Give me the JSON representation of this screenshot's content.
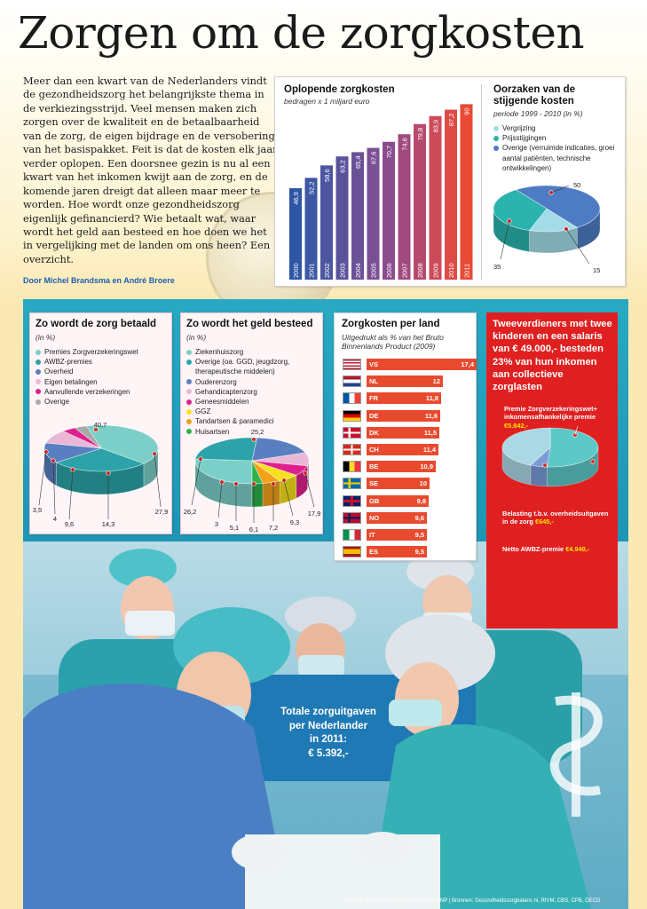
{
  "title": "Zorgen om de zorgkosten",
  "intro": "Meer dan een kwart van de Nederlanders vindt de gezondheidszorg het belangrijkste thema in de verkiezingsstrijd. Veel mensen maken zich zorgen over de kwaliteit en de betaalbaarheid van de zorg, de eigen bijdrage en de versobering van het basispakket. Feit is dat de kosten elk jaar verder oplopen. Een doorsnee gezin is nu al een kwart van het inkomen kwijt aan de zorg, en de komende jaren dreigt dat alleen maar meer te worden. Hoe wordt onze gezondheidszorg eigenlijk gefinancierd? Wie betaalt wat, waar wordt het geld aan besteed en hoe doen we het in vergelijking met de landen om ons heen? Een overzicht.",
  "byline": "Door Michel Brandsma en André Broere",
  "total_box": {
    "line1": "Totale zorguitgaven",
    "line2": "per Nederlander",
    "line3": "in 2011:",
    "line4": "€ 5.392,-"
  },
  "credits": "© DyNN 140912 | André Broere | Foto: ANP | Bronnen: Gezondheidszorgbalans nl, RIVM, CBS, CPB, OECD",
  "red_box": {
    "title": "Tweeverdieners met twee kinderen en een salaris van € 49.000,- besteden 23% van hun inkomen aan collectieve zorglasten",
    "premie_label": "Premie Zorgverzekeringswet+ inkomensafhankelijke premie",
    "premie_value": "€5.842,-",
    "belasting_label": "Belasting t.b.v. overheidsuitgaven in de zorg",
    "belasting_value": "€645,-",
    "netto_label": "Netto AWBZ-premie",
    "netto_value": "€4.949,-"
  },
  "chart_data": [
    {
      "type": "bar",
      "title": "Oplopende zorgkosten",
      "subtitle": "bedragen x 1 miljard euro",
      "categories": [
        "2000",
        "2001",
        "2002",
        "2003",
        "2004",
        "2005",
        "2006",
        "2007",
        "2008",
        "2009",
        "2010",
        "2011"
      ],
      "values": [
        46.9,
        52.2,
        58.6,
        63.2,
        65.4,
        67.6,
        70.7,
        74.6,
        79.8,
        83.9,
        87.2,
        90
      ],
      "colors": [
        "#2f56a6",
        "#3c57a3",
        "#4b55a0",
        "#5a539c",
        "#6a5198",
        "#7a4f94",
        "#8b4c8e",
        "#a04a80",
        "#b8496e",
        "#cd4a59",
        "#dd4b46",
        "#e84a35"
      ]
    },
    {
      "type": "pie",
      "title": "Oorzaken van de stijgende kosten",
      "subtitle": "periode 1999 - 2010 (in %)",
      "labels": [
        "Vergrijzing",
        "Prijsstijgingen",
        "Overige (verruimde indicaties, groei aantal patiënten, technische ontwikkelingen)"
      ],
      "values": [
        15,
        35,
        50
      ],
      "colors": [
        "#a3dce8",
        "#2bb3ae",
        "#4e7cc4"
      ]
    },
    {
      "type": "pie",
      "title": "Zo wordt de zorg betaald",
      "subtitle": "(in %)",
      "labels": [
        "Premies Zorgverzekeringswet",
        "AWBZ-premies",
        "Overheid",
        "Eigen betalingen",
        "Aanvullende verzekeringen",
        "Overige"
      ],
      "values": [
        40.7,
        27.9,
        14.3,
        9.6,
        4,
        3.5
      ],
      "colors": [
        "#7ccfc9",
        "#2ba3a8",
        "#5a7fc0",
        "#e9b8d6",
        "#e0208e",
        "#a9a9a9"
      ]
    },
    {
      "type": "pie",
      "title": "Zo wordt het geld besteed",
      "subtitle": "(in %)",
      "labels": [
        "Ziekenhuiszorg",
        "Overige (oa. GGD, jeugdzorg, therapeutische middelen)",
        "Ouderenzorg",
        "Gehandicaptenzorg",
        "Geneesmiddelen",
        "GGZ",
        "Tandartsen & paramedici",
        "Huisartsen"
      ],
      "values": [
        26.2,
        25.2,
        17.9,
        9.3,
        7.2,
        6.1,
        5.1,
        3
      ],
      "colors": [
        "#7ccfc9",
        "#2ba3a8",
        "#5a7fc0",
        "#e9b8d6",
        "#e0208e",
        "#f6e11c",
        "#f4a01b",
        "#2db34a"
      ]
    },
    {
      "type": "bar",
      "title": "Zorgkosten per land",
      "subtitle": "Uitgedrukt als % van het Bruto Binnenlands Product (2009)",
      "categories": [
        "VS",
        "NL",
        "FR",
        "DE",
        "DK",
        "CH",
        "BE",
        "SE",
        "GB",
        "NO",
        "IT",
        "ES"
      ],
      "values": [
        17.4,
        12,
        11.8,
        11.6,
        11.5,
        11.4,
        10.9,
        10,
        9.8,
        9.6,
        9.5,
        9.5
      ]
    },
    {
      "type": "pie",
      "title": "",
      "labels": [
        "Premie Zorgverzekeringswet+ inkomensafhankelijke premie",
        "Belasting t.b.v. overheidsuitgaven in de zorg",
        "Netto AWBZ-premie"
      ],
      "values": [
        5842,
        645,
        4949
      ],
      "colors": [
        "#5dc8c8",
        "#7a9bd8",
        "#aad8e4"
      ]
    }
  ]
}
